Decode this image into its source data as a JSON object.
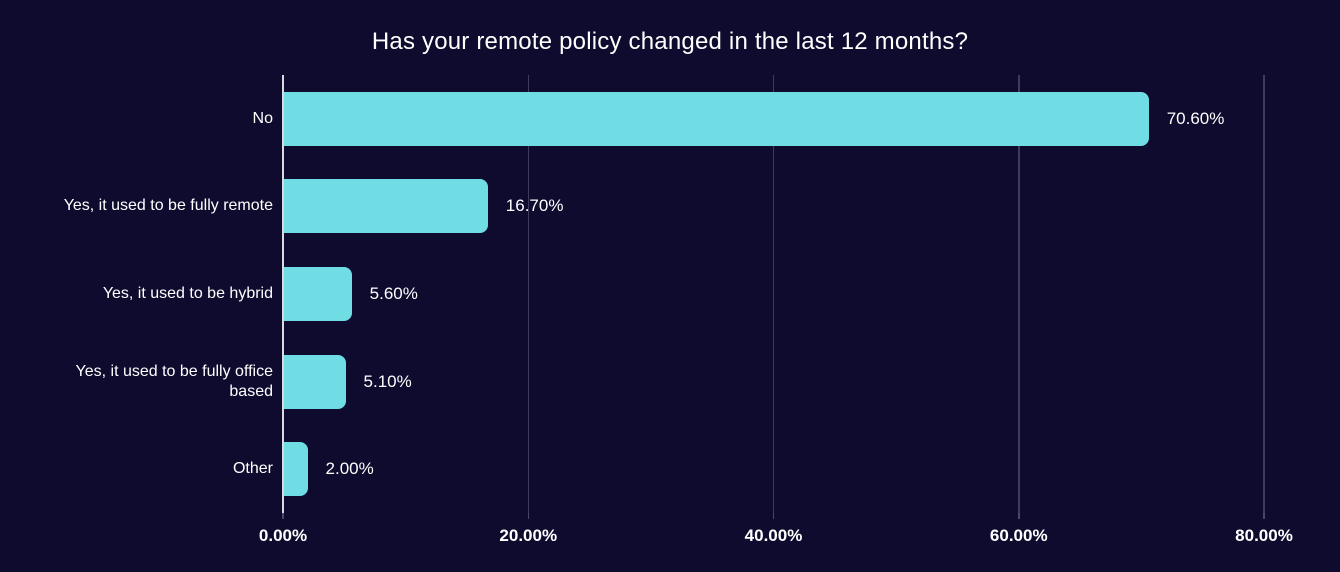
{
  "page": {
    "background_color": "#0e0b2e"
  },
  "chart_data": {
    "type": "bar",
    "orientation": "horizontal",
    "title": "Has your remote policy changed in the last 12 months?",
    "categories": [
      "No",
      "Yes, it used to be fully remote",
      "Yes, it used to be hybrid",
      "Yes, it used to be fully office based",
      "Other"
    ],
    "values": [
      70.6,
      16.7,
      5.6,
      5.1,
      2.0
    ],
    "value_labels": [
      "70.60%",
      "16.70%",
      "5.60%",
      "5.10%",
      "2.00%"
    ],
    "xlabel": "",
    "ylabel": "",
    "xlim": [
      0,
      83
    ],
    "x_tick_values": [
      0,
      20,
      40,
      60,
      80
    ],
    "x_tick_labels": [
      "0.00%",
      "20.00%",
      "40.00%",
      "60.00%",
      "80.00%"
    ],
    "grid": true,
    "legend_position": "none",
    "bar_color": "#70dce4",
    "axis_color": "#d9d9e4",
    "grid_color": "#3e3b5c",
    "text_color": "#ffffff"
  }
}
